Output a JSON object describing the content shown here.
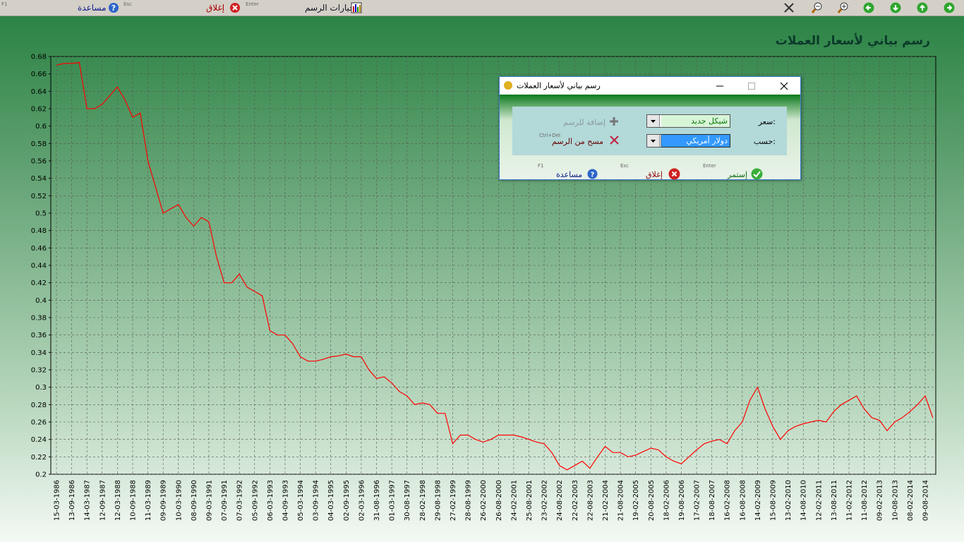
{
  "toolbar": {
    "help": "مساعدة",
    "help_key": "F1",
    "close": "إغلاق",
    "close_key": "Esc",
    "options_key": "Enter",
    "options": "خيارات الرسم"
  },
  "chart_data": {
    "type": "line",
    "title": "رسم بياني لأسعار العملات",
    "color": "#ff0000",
    "grid": true,
    "ylim": [
      0.2,
      0.68
    ],
    "yticks": [
      0.2,
      0.22,
      0.24,
      0.26,
      0.28,
      0.3,
      0.32,
      0.34,
      0.36,
      0.38,
      0.4,
      0.42,
      0.44,
      0.46,
      0.48,
      0.5,
      0.52,
      0.54,
      0.56,
      0.58,
      0.6,
      0.62,
      0.64,
      0.66,
      0.68
    ],
    "categories": [
      "15-03-1986",
      null,
      "13-09-1986",
      null,
      "14-03-1987",
      null,
      "12-09-1987",
      null,
      "12-03-1988",
      null,
      "10-09-1988",
      null,
      "11-03-1989",
      null,
      "09-09-1989",
      null,
      "10-03-1990",
      null,
      "08-09-1990",
      null,
      "09-03-1991",
      null,
      "07-09-1991",
      null,
      "07-03-1992",
      null,
      "05-09-1992",
      null,
      "06-03-1993",
      null,
      "04-09-1993",
      null,
      "05-03-1994",
      null,
      "03-09-1994",
      null,
      "04-03-1995",
      null,
      "02-09-1995",
      null,
      "02-03-1996",
      null,
      "31-08-1996",
      null,
      "01-03-1997",
      null,
      "30-08-1997",
      null,
      "28-02-1998",
      null,
      "29-08-1998",
      null,
      "27-02-1999",
      null,
      "28-08-1999",
      null,
      "26-02-2000",
      null,
      "26-08-2000",
      null,
      "24-02-2001",
      null,
      "25-08-2001",
      null,
      "23-02-2002",
      null,
      "24-08-2002",
      null,
      "22-02-2003",
      null,
      "22-08-2003",
      null,
      "21-02-2004",
      null,
      "21-08-2004",
      null,
      "19-02-2005",
      null,
      "20-08-2005",
      null,
      "18-02-2006",
      null,
      "19-08-2006",
      null,
      "17-02-2007",
      null,
      "18-08-2007",
      null,
      "16-02-2008",
      null,
      "16-08-2008",
      null,
      "14-02-2009",
      null,
      "15-08-2009",
      null,
      "13-02-2010",
      null,
      "14-08-2010",
      null,
      "12-02-2011",
      null,
      "13-08-2011",
      null,
      "11-02-2012",
      null,
      "11-08-2012",
      null,
      "09-02-2013",
      null,
      "10-08-2013",
      null,
      "08-02-2014",
      null,
      "09-08-2014",
      null
    ],
    "values": [
      0.67,
      0.672,
      0.672,
      0.673,
      0.62,
      0.62,
      0.625,
      0.635,
      0.645,
      0.63,
      0.61,
      0.615,
      0.56,
      0.53,
      0.5,
      0.505,
      0.51,
      0.495,
      0.485,
      0.495,
      0.49,
      0.45,
      0.42,
      0.42,
      0.43,
      0.415,
      0.41,
      0.405,
      0.365,
      0.36,
      0.36,
      0.35,
      0.335,
      0.33,
      0.33,
      0.332,
      0.335,
      0.336,
      0.338,
      0.335,
      0.335,
      0.32,
      0.31,
      0.312,
      0.305,
      0.295,
      0.29,
      0.28,
      0.282,
      0.28,
      0.27,
      0.27,
      0.235,
      0.245,
      0.245,
      0.24,
      0.237,
      0.24,
      0.245,
      0.245,
      0.245,
      0.243,
      0.24,
      0.237,
      0.235,
      0.225,
      0.21,
      0.205,
      0.21,
      0.215,
      0.207,
      0.22,
      0.232,
      0.225,
      0.225,
      0.22,
      0.222,
      0.226,
      0.23,
      0.228,
      0.22,
      0.215,
      0.212,
      0.22,
      0.228,
      0.235,
      0.238,
      0.24,
      0.235,
      0.25,
      0.26,
      0.285,
      0.3,
      0.275,
      0.255,
      0.24,
      0.25,
      0.255,
      0.258,
      0.26,
      0.262,
      0.26,
      0.272,
      0.28,
      0.285,
      0.29,
      0.275,
      0.265,
      0.262,
      0.25,
      0.26,
      0.265,
      0.272,
      0.28,
      0.29,
      0.265
    ]
  },
  "dialog": {
    "title": "رسم بياني لأسعار العملات",
    "rate_label": "سعر:",
    "rate_value": "شيكل جديد",
    "by_label": "حسب:",
    "by_value": "دولار أمريكي",
    "add": "إضافة للرسم",
    "remove": "مسح من الرسم",
    "remove_key": "Ctrl+Del",
    "continue": "إستمر",
    "continue_key": "Enter",
    "close": "إغلاق",
    "close_key": "Esc",
    "help": "مساعدة",
    "help_key": "F1"
  }
}
